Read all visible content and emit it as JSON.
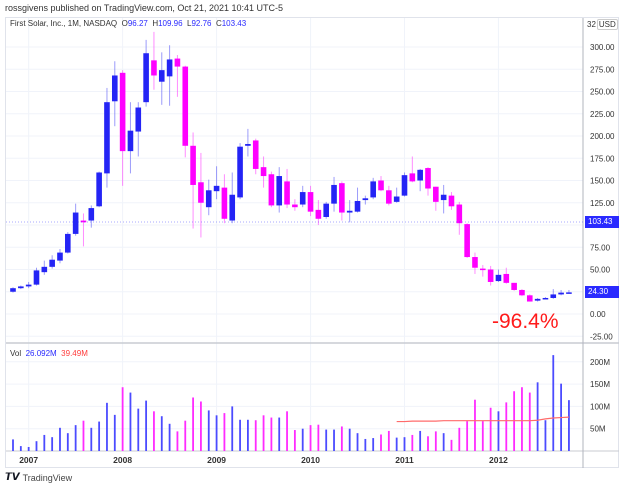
{
  "header": {
    "published": "rossgivens published on TradingView.com, Oct 21, 2021 10:41 UTC-5"
  },
  "legend": {
    "symbol": "First Solar, Inc., 1M, NASDAQ",
    "o_label": "O",
    "o": "96.27",
    "h_label": "H",
    "h": "109.96",
    "l_label": "L",
    "l": "92.76",
    "c_label": "C",
    "c": "103.43"
  },
  "volume_legend": {
    "label": "Vol",
    "value": "26.092M",
    "ma": "39.49M"
  },
  "annotation": "-96.4%",
  "price_axis": {
    "top_label": "32",
    "currency": "USD",
    "last_price": "103.43",
    "marker_price": "24.30"
  },
  "footer": {
    "brand": "TradingView"
  },
  "colors": {
    "up": "#2424f5",
    "down": "#ff00ff",
    "volume_ma": "#ff6b6b",
    "annotation": "#ff1a1a"
  },
  "chart_data": {
    "type": "candlestick",
    "interval": "1M",
    "ylim": [
      -25,
      325
    ],
    "y_ticks": [
      "300.00",
      "275.00",
      "250.00",
      "225.00",
      "200.00",
      "175.00",
      "150.00",
      "125.00",
      "75.00",
      "50.00",
      "0.00",
      "-25.00"
    ],
    "y_tick_values": [
      300,
      275,
      250,
      225,
      200,
      175,
      150,
      125,
      75,
      50,
      0,
      -25
    ],
    "x_ticks": [
      "2007",
      "2008",
      "2009",
      "2010",
      "2011",
      "2012"
    ],
    "grid": true,
    "dates": [
      "2006-11",
      "2006-12",
      "2007-01",
      "2007-02",
      "2007-03",
      "2007-04",
      "2007-05",
      "2007-06",
      "2007-07",
      "2007-08",
      "2007-09",
      "2007-10",
      "2007-11",
      "2007-12",
      "2008-01",
      "2008-02",
      "2008-03",
      "2008-04",
      "2008-05",
      "2008-06",
      "2008-07",
      "2008-08",
      "2008-09",
      "2008-10",
      "2008-11",
      "2008-12",
      "2009-01",
      "2009-02",
      "2009-03",
      "2009-04",
      "2009-05",
      "2009-06",
      "2009-07",
      "2009-08",
      "2009-09",
      "2009-10",
      "2009-11",
      "2009-12",
      "2010-01",
      "2010-02",
      "2010-03",
      "2010-04",
      "2010-05",
      "2010-06",
      "2010-07",
      "2010-08",
      "2010-09",
      "2010-10",
      "2010-11",
      "2010-12",
      "2011-01",
      "2011-02",
      "2011-03",
      "2011-04",
      "2011-05",
      "2011-06",
      "2011-07",
      "2011-08",
      "2011-09",
      "2011-10",
      "2011-11",
      "2011-12",
      "2012-01",
      "2012-02",
      "2012-03",
      "2012-04",
      "2012-05",
      "2012-06",
      "2012-07",
      "2012-08",
      "2012-09",
      "2012-10"
    ],
    "ohlc": [
      [
        25,
        30,
        24,
        29
      ],
      [
        29,
        32,
        28,
        31
      ],
      [
        31,
        36,
        29,
        33
      ],
      [
        33,
        52,
        32,
        49
      ],
      [
        47,
        60,
        44,
        53
      ],
      [
        53,
        66,
        51,
        61
      ],
      [
        60,
        73,
        57,
        69
      ],
      [
        69,
        92,
        68,
        90
      ],
      [
        90,
        124,
        88,
        114
      ],
      [
        105,
        113,
        76,
        103
      ],
      [
        105,
        122,
        97,
        119
      ],
      [
        121,
        160,
        120,
        159
      ],
      [
        158,
        254,
        142,
        238
      ],
      [
        239,
        284,
        211,
        268
      ],
      [
        271,
        274,
        144,
        183
      ],
      [
        183,
        238,
        158,
        206
      ],
      [
        205,
        238,
        177,
        232
      ],
      [
        238,
        308,
        233,
        293
      ],
      [
        285,
        317,
        252,
        268
      ],
      [
        261,
        294,
        235,
        274
      ],
      [
        267,
        302,
        234,
        286
      ],
      [
        287,
        291,
        244,
        278
      ],
      [
        278,
        279,
        176,
        189
      ],
      [
        189,
        204,
        96,
        145
      ],
      [
        148,
        181,
        86,
        125
      ],
      [
        120,
        151,
        111,
        139
      ],
      [
        138,
        166,
        129,
        144
      ],
      [
        142,
        157,
        102,
        107
      ],
      [
        105,
        159,
        102,
        134
      ],
      [
        131,
        192,
        129,
        188
      ],
      [
        189,
        208,
        177,
        191
      ],
      [
        195,
        197,
        157,
        163
      ],
      [
        165,
        177,
        142,
        155
      ],
      [
        157,
        160,
        120,
        122
      ],
      [
        122,
        165,
        114,
        155
      ],
      [
        149,
        163,
        119,
        123
      ],
      [
        123,
        129,
        116,
        120
      ],
      [
        123,
        144,
        120,
        137
      ],
      [
        137,
        144,
        110,
        115
      ],
      [
        117,
        128,
        100,
        107
      ],
      [
        109,
        126,
        107,
        124
      ],
      [
        124,
        154,
        115,
        145
      ],
      [
        147,
        149,
        105,
        114
      ],
      [
        114,
        128,
        103,
        116
      ],
      [
        115,
        142,
        114,
        127
      ],
      [
        128,
        133,
        123,
        130
      ],
      [
        131,
        153,
        129,
        149
      ],
      [
        150,
        155,
        138,
        139
      ],
      [
        139,
        144,
        122,
        124
      ],
      [
        126,
        142,
        125,
        132
      ],
      [
        133,
        159,
        132,
        156
      ],
      [
        158,
        177,
        148,
        149
      ],
      [
        150,
        163,
        138,
        162
      ],
      [
        164,
        165,
        133,
        141
      ],
      [
        143,
        143,
        116,
        126
      ],
      [
        128,
        145,
        113,
        134
      ],
      [
        133,
        137,
        117,
        121
      ],
      [
        123,
        126,
        89,
        102
      ],
      [
        101,
        102,
        63,
        64
      ],
      [
        64,
        69,
        45,
        52
      ],
      [
        51,
        55,
        42,
        50
      ],
      [
        50,
        54,
        32,
        36
      ],
      [
        37,
        50,
        36,
        44
      ],
      [
        45,
        52,
        34,
        35
      ],
      [
        35,
        35,
        26,
        27
      ],
      [
        27,
        28,
        20,
        21
      ],
      [
        21,
        22,
        14,
        14
      ],
      [
        15,
        18,
        14,
        17
      ],
      [
        17,
        19,
        17,
        18
      ],
      [
        18,
        28,
        17,
        22
      ],
      [
        22,
        27,
        21,
        24
      ],
      [
        24,
        27,
        23,
        24.3
      ]
    ],
    "volume_ylim": [
      0,
      230
    ],
    "volume_ticks": [
      "200M",
      "150M",
      "100M",
      "50M"
    ],
    "volume_tick_values": [
      200,
      150,
      100,
      50
    ],
    "volume_millions": [
      26,
      11,
      9,
      22,
      36,
      31,
      52,
      40,
      58,
      68,
      52,
      66,
      108,
      81,
      143,
      131,
      95,
      113,
      89,
      78,
      61,
      44,
      68,
      120,
      111,
      91,
      80,
      85,
      100,
      70,
      70,
      69,
      80,
      75,
      75,
      89,
      47,
      50,
      58,
      59,
      48,
      48,
      55,
      50,
      40,
      27,
      29,
      37,
      45,
      30,
      31,
      36,
      45,
      33,
      44,
      40,
      25,
      52,
      67,
      115,
      67,
      97,
      89,
      109,
      134,
      143,
      131,
      154,
      69,
      215,
      151,
      114
    ],
    "volume_ma_start_index": 49,
    "volume_ma_millions": [
      66,
      66,
      67,
      67,
      67,
      67,
      68,
      68,
      68,
      68,
      68,
      68,
      68,
      68,
      68,
      68,
      68,
      68,
      69,
      72,
      74,
      75,
      76
    ]
  }
}
